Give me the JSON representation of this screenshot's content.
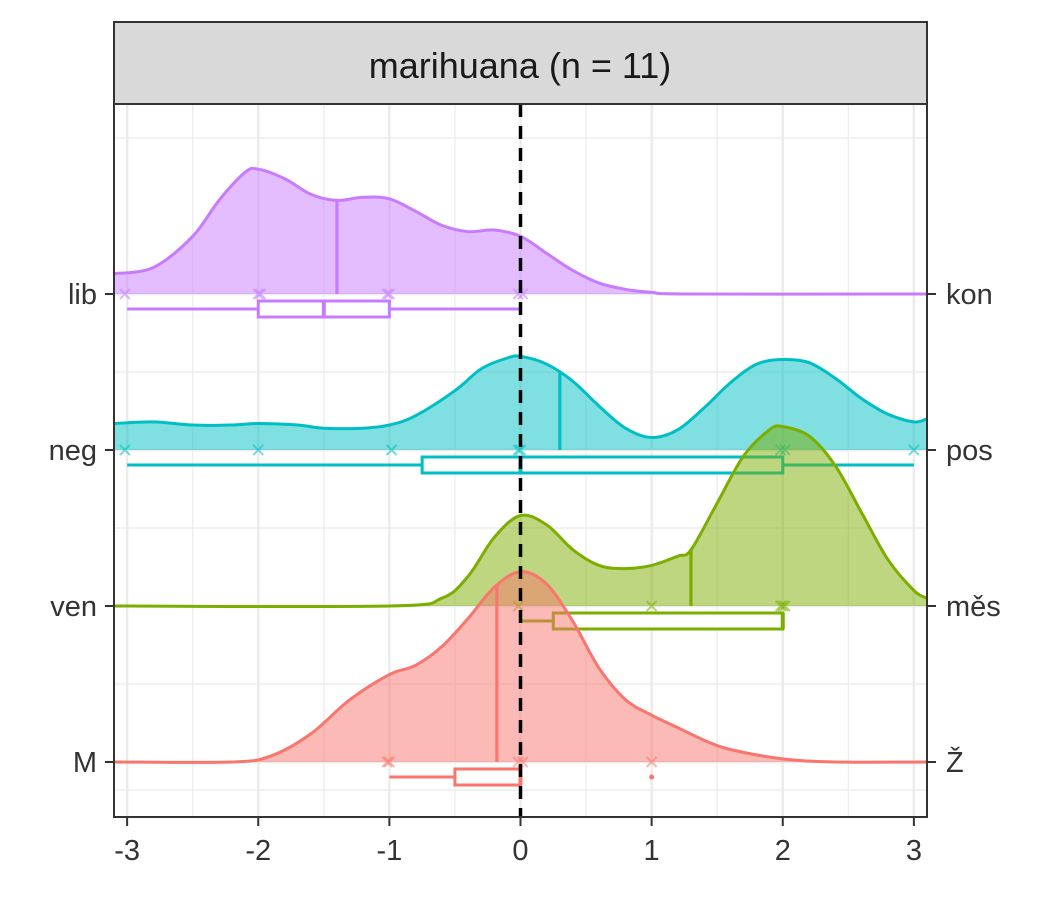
{
  "chart_data": {
    "type": "density-raincloud",
    "title": "marihuana (n = 11)",
    "xlabel": "",
    "ylabel": "",
    "xlim": [
      -3.1,
      3.1
    ],
    "x_ticks": [
      -3,
      -2,
      -1,
      0,
      1,
      2,
      3
    ],
    "x_tick_labels": [
      "-3",
      "-2",
      "-1",
      "0",
      "1",
      "2",
      "3"
    ],
    "reference_line_x": 0,
    "grid": true,
    "rows": [
      {
        "left_label": "lib",
        "right_label": "kon",
        "color": "#C77CFF",
        "points": [
          -3,
          -2,
          -2,
          -1,
          -1,
          0,
          0
        ],
        "mean": -1.4,
        "box": {
          "whisker_low": -3,
          "q1": -2,
          "median": -1.5,
          "q3": -1,
          "whisker_high": 0
        },
        "outliers": [],
        "density": [
          [
            -3.1,
            0.13
          ],
          [
            -2.8,
            0.17
          ],
          [
            -2.5,
            0.37
          ],
          [
            -2.3,
            0.6
          ],
          [
            -2.1,
            0.78
          ],
          [
            -2.0,
            0.8
          ],
          [
            -1.8,
            0.74
          ],
          [
            -1.6,
            0.64
          ],
          [
            -1.4,
            0.6
          ],
          [
            -1.2,
            0.62
          ],
          [
            -1.0,
            0.61
          ],
          [
            -0.8,
            0.53
          ],
          [
            -0.6,
            0.44
          ],
          [
            -0.4,
            0.4
          ],
          [
            -0.2,
            0.41
          ],
          [
            0.0,
            0.37
          ],
          [
            0.2,
            0.26
          ],
          [
            0.4,
            0.15
          ],
          [
            0.6,
            0.07
          ],
          [
            0.8,
            0.03
          ],
          [
            1.0,
            0.01
          ],
          [
            1.3,
            0.0
          ],
          [
            3.1,
            0.0
          ]
        ]
      },
      {
        "left_label": "neg",
        "right_label": "pos",
        "color": "#00BFC4",
        "points": [
          -3,
          -2,
          -1,
          0,
          0,
          2,
          2,
          3
        ],
        "mean": 0.3,
        "box": {
          "whisker_low": -3,
          "q1": -0.75,
          "median": 0,
          "q3": 2,
          "whisker_high": 3
        },
        "outliers": [],
        "density": [
          [
            -3.1,
            0.17
          ],
          [
            -2.8,
            0.18
          ],
          [
            -2.5,
            0.16
          ],
          [
            -2.2,
            0.16
          ],
          [
            -2.0,
            0.17
          ],
          [
            -1.7,
            0.16
          ],
          [
            -1.5,
            0.14
          ],
          [
            -1.2,
            0.14
          ],
          [
            -1.0,
            0.16
          ],
          [
            -0.8,
            0.22
          ],
          [
            -0.5,
            0.38
          ],
          [
            -0.3,
            0.52
          ],
          [
            -0.1,
            0.59
          ],
          [
            0.0,
            0.6
          ],
          [
            0.2,
            0.55
          ],
          [
            0.4,
            0.44
          ],
          [
            0.6,
            0.28
          ],
          [
            0.8,
            0.14
          ],
          [
            1.0,
            0.08
          ],
          [
            1.2,
            0.13
          ],
          [
            1.4,
            0.27
          ],
          [
            1.6,
            0.43
          ],
          [
            1.8,
            0.55
          ],
          [
            2.0,
            0.58
          ],
          [
            2.2,
            0.56
          ],
          [
            2.4,
            0.46
          ],
          [
            2.6,
            0.33
          ],
          [
            2.8,
            0.23
          ],
          [
            3.0,
            0.18
          ],
          [
            3.1,
            0.2
          ]
        ]
      },
      {
        "left_label": "ven",
        "right_label": "měs",
        "color": "#7CAE00",
        "points": [
          0,
          1,
          2,
          2,
          2
        ],
        "mean": 1.3,
        "box": {
          "whisker_low": 0,
          "q1": 0.25,
          "median": 2,
          "q3": 2,
          "whisker_high": 2
        },
        "outliers": [],
        "density": [
          [
            -3.1,
            0.0
          ],
          [
            -1.0,
            0.0
          ],
          [
            -0.6,
            0.05
          ],
          [
            -0.4,
            0.19
          ],
          [
            -0.2,
            0.44
          ],
          [
            0.0,
            0.58
          ],
          [
            0.2,
            0.52
          ],
          [
            0.4,
            0.36
          ],
          [
            0.6,
            0.26
          ],
          [
            0.8,
            0.24
          ],
          [
            1.0,
            0.26
          ],
          [
            1.2,
            0.32
          ],
          [
            1.3,
            0.36
          ],
          [
            1.5,
            0.66
          ],
          [
            1.7,
            0.96
          ],
          [
            1.9,
            1.13
          ],
          [
            2.0,
            1.15
          ],
          [
            2.2,
            1.09
          ],
          [
            2.4,
            0.9
          ],
          [
            2.6,
            0.6
          ],
          [
            2.8,
            0.3
          ],
          [
            3.0,
            0.1
          ],
          [
            3.1,
            0.05
          ]
        ]
      },
      {
        "left_label": "M",
        "right_label": "Ž",
        "color": "#F8766D",
        "points": [
          -1,
          -1,
          0,
          0,
          1
        ],
        "mean": -0.18,
        "box": {
          "whisker_low": -1,
          "q1": -0.5,
          "median": 0,
          "q3": 0,
          "whisker_high": 0
        },
        "outliers": [
          1
        ],
        "density": [
          [
            -3.1,
            0.0
          ],
          [
            -2.2,
            0.0
          ],
          [
            -1.9,
            0.04
          ],
          [
            -1.6,
            0.18
          ],
          [
            -1.3,
            0.4
          ],
          [
            -1.0,
            0.56
          ],
          [
            -0.8,
            0.62
          ],
          [
            -0.6,
            0.74
          ],
          [
            -0.4,
            0.92
          ],
          [
            -0.2,
            1.12
          ],
          [
            0.0,
            1.22
          ],
          [
            0.2,
            1.14
          ],
          [
            0.4,
            0.9
          ],
          [
            0.6,
            0.6
          ],
          [
            0.8,
            0.4
          ],
          [
            1.0,
            0.3
          ],
          [
            1.2,
            0.22
          ],
          [
            1.4,
            0.14
          ],
          [
            1.6,
            0.08
          ],
          [
            2.0,
            0.02
          ],
          [
            2.4,
            0.0
          ],
          [
            3.1,
            0.0
          ]
        ]
      }
    ]
  }
}
